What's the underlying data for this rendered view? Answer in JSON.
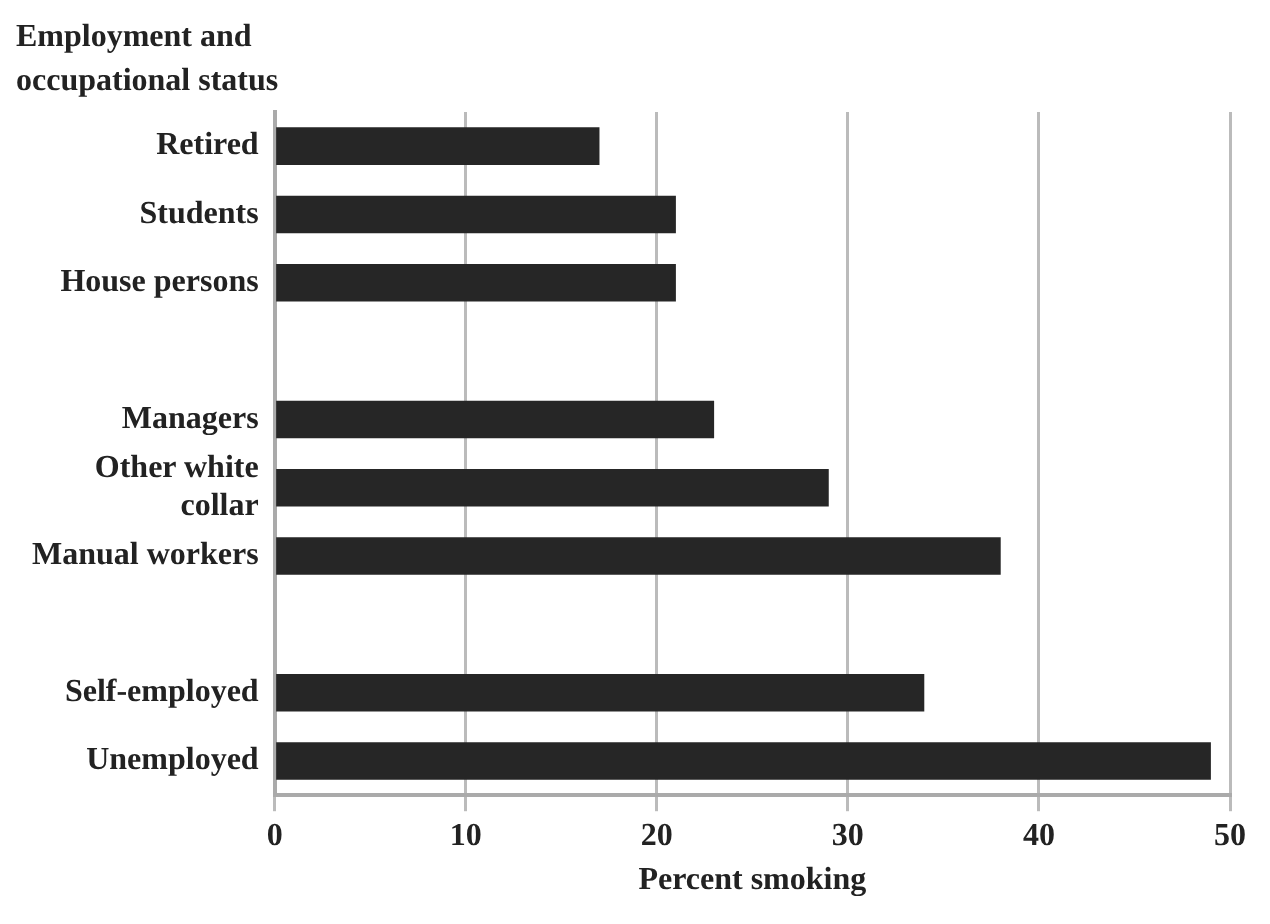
{
  "chart_data": {
    "type": "bar",
    "orientation": "horizontal",
    "ylabel": "Employment and occupational status",
    "xlabel": "Percent smoking",
    "categories": [
      "Retired",
      "Students",
      "House persons",
      null,
      "Managers",
      "Other white collar",
      "Manual workers",
      null,
      "Self-employed",
      "Unemployed"
    ],
    "values": [
      17,
      21,
      21,
      null,
      23,
      29,
      38,
      null,
      34,
      49
    ],
    "color": "#262626",
    "xlim": [
      0,
      50
    ],
    "xticks": [
      0,
      10,
      20,
      30,
      40,
      50
    ],
    "grid": "x",
    "legend": false
  }
}
